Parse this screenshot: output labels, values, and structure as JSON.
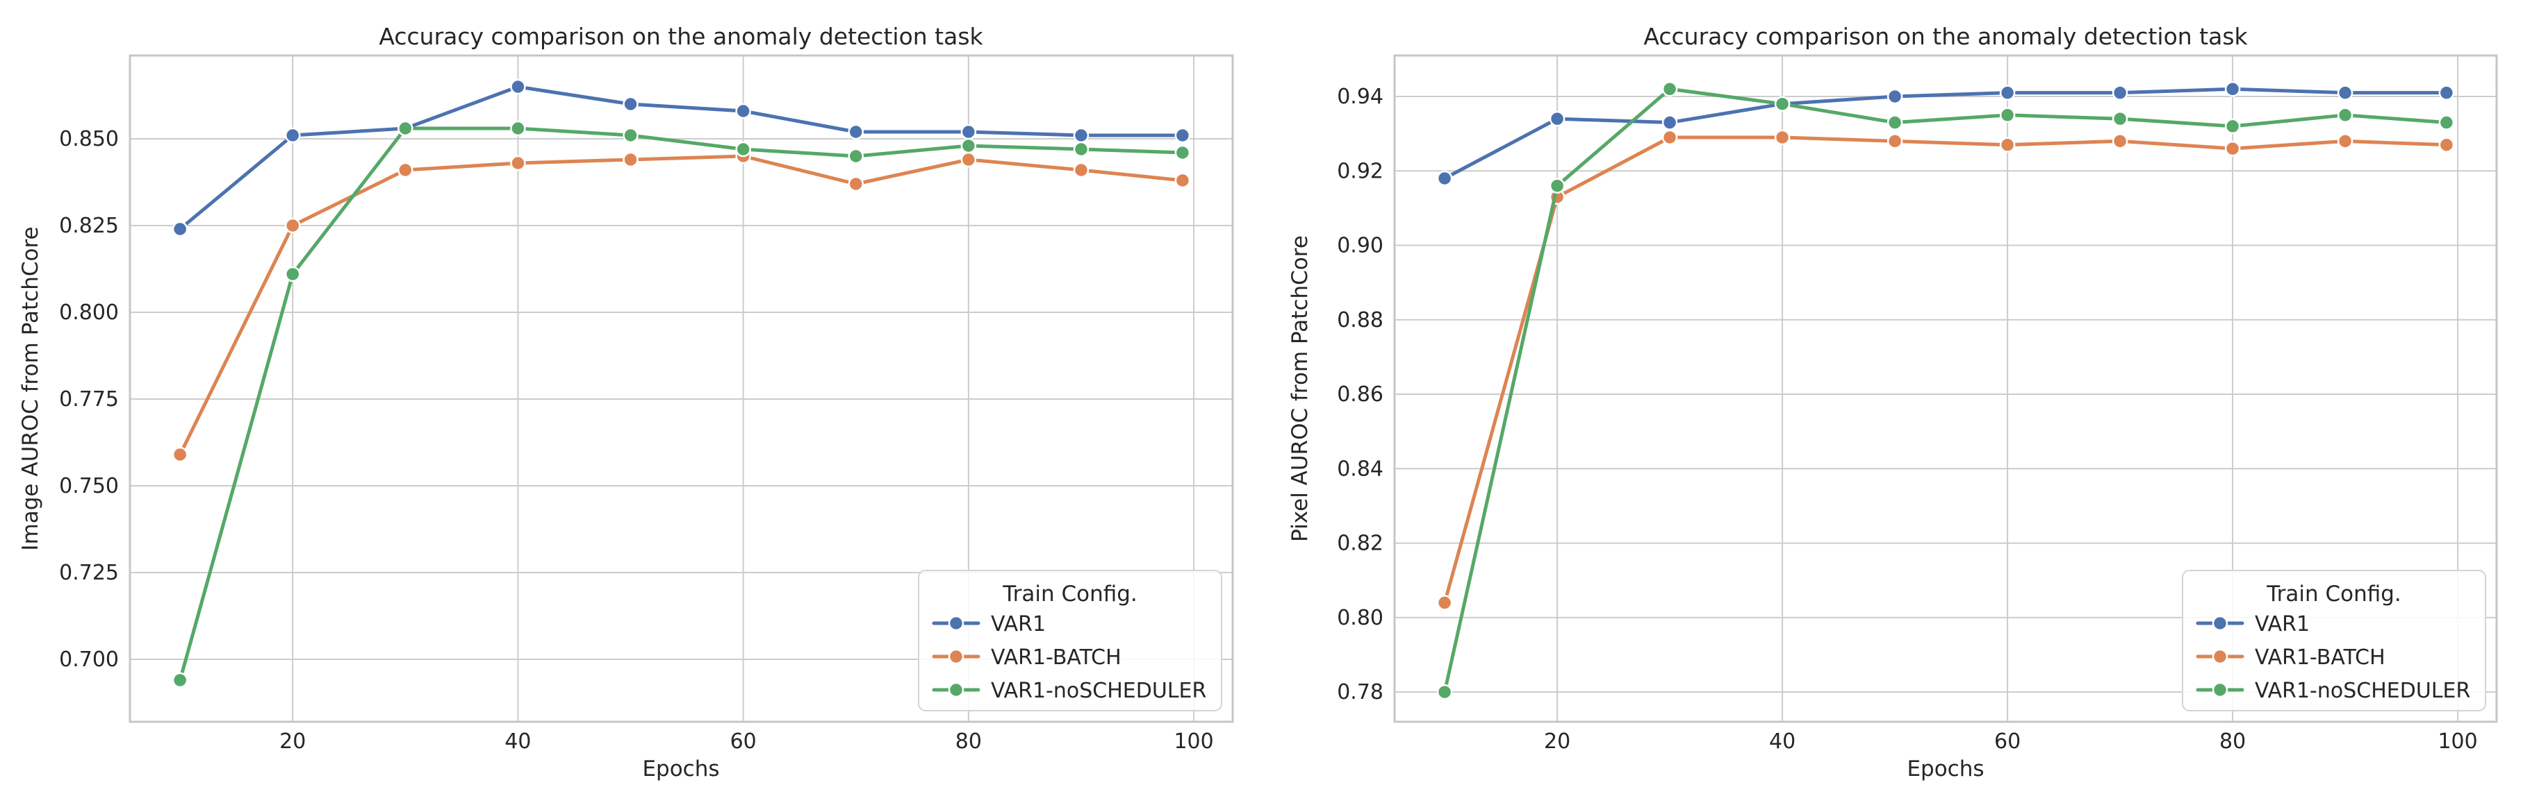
{
  "figure": {
    "background": "#FFFFFF",
    "text_color": "#262626",
    "grid_color": "#CCCCCC",
    "spine_color": "#C6C6C6",
    "marker_edge_color": "#FFFFFF"
  },
  "chart_data": [
    {
      "type": "line",
      "title": "Accuracy comparison on the anomaly detection task",
      "xlabel": "Epochs",
      "ylabel": "Image AUROC from PatchCore",
      "grid": true,
      "legend": {
        "title": "Train Config.",
        "position": "lower right"
      },
      "x": [
        10,
        20,
        30,
        40,
        50,
        60,
        70,
        80,
        90,
        99
      ],
      "xlim": [
        5.55,
        103.45
      ],
      "ylim": [
        0.682,
        0.874
      ],
      "xticks": [
        20,
        40,
        60,
        80,
        100
      ],
      "xtick_labels": [
        "20",
        "40",
        "60",
        "80",
        "100"
      ],
      "yticks": [
        0.7,
        0.725,
        0.75,
        0.775,
        0.8,
        0.825,
        0.85
      ],
      "ytick_labels": [
        "0.700",
        "0.725",
        "0.750",
        "0.775",
        "0.800",
        "0.825",
        "0.850"
      ],
      "series": [
        {
          "name": "VAR1",
          "color": "#4C72B0",
          "values": [
            0.824,
            0.851,
            0.853,
            0.865,
            0.86,
            0.858,
            0.852,
            0.852,
            0.851,
            0.851
          ]
        },
        {
          "name": "VAR1-BATCH",
          "color": "#DD8452",
          "values": [
            0.759,
            0.825,
            0.841,
            0.843,
            0.844,
            0.845,
            0.837,
            0.844,
            0.841,
            0.838
          ]
        },
        {
          "name": "VAR1-noSCHEDULER",
          "color": "#55A868",
          "values": [
            0.694,
            0.811,
            0.853,
            0.853,
            0.851,
            0.847,
            0.845,
            0.848,
            0.847,
            0.846
          ]
        }
      ]
    },
    {
      "type": "line",
      "title": "Accuracy comparison on the anomaly detection task",
      "xlabel": "Epochs",
      "ylabel": "Pixel AUROC from PatchCore",
      "grid": true,
      "legend": {
        "title": "Train Config.",
        "position": "lower right"
      },
      "x": [
        10,
        20,
        30,
        40,
        50,
        60,
        70,
        80,
        90,
        99
      ],
      "xlim": [
        5.55,
        103.45
      ],
      "ylim": [
        0.772,
        0.951
      ],
      "xticks": [
        20,
        40,
        60,
        80,
        100
      ],
      "xtick_labels": [
        "20",
        "40",
        "60",
        "80",
        "100"
      ],
      "yticks": [
        0.78,
        0.8,
        0.82,
        0.84,
        0.86,
        0.88,
        0.9,
        0.92,
        0.94
      ],
      "ytick_labels": [
        "0.78",
        "0.80",
        "0.82",
        "0.84",
        "0.86",
        "0.88",
        "0.90",
        "0.92",
        "0.94"
      ],
      "series": [
        {
          "name": "VAR1",
          "color": "#4C72B0",
          "values": [
            0.918,
            0.934,
            0.933,
            0.938,
            0.94,
            0.941,
            0.941,
            0.942,
            0.941,
            0.941
          ]
        },
        {
          "name": "VAR1-BATCH",
          "color": "#DD8452",
          "values": [
            0.804,
            0.913,
            0.929,
            0.929,
            0.928,
            0.927,
            0.928,
            0.926,
            0.928,
            0.927
          ]
        },
        {
          "name": "VAR1-noSCHEDULER",
          "color": "#55A868",
          "values": [
            0.78,
            0.916,
            0.942,
            0.938,
            0.933,
            0.935,
            0.934,
            0.932,
            0.935,
            0.933
          ]
        }
      ]
    }
  ]
}
